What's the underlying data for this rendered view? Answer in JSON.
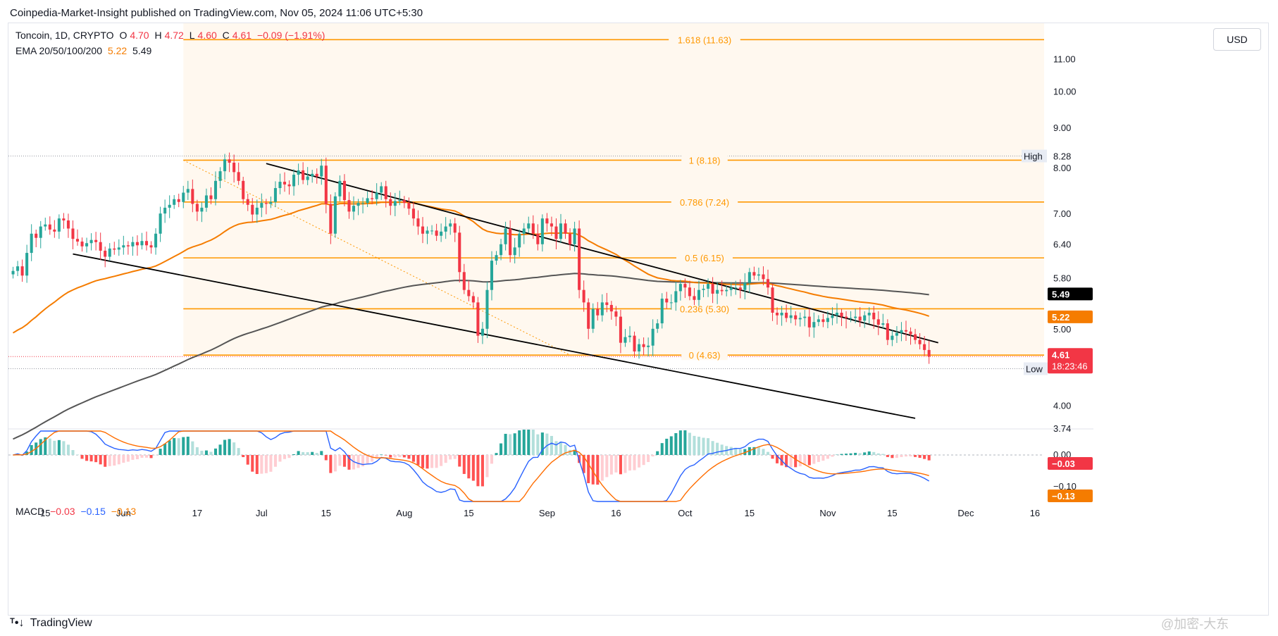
{
  "publisher_line": "Coinpedia-Market-Insight published on TradingView.com, Nov 05, 2024 11:06 UTC+5:30",
  "legend": {
    "symbol": "Toncoin, 1D, CRYPTO",
    "o_label": "O",
    "o": "4.70",
    "h_label": "H",
    "h": "4.72",
    "l_label": "L",
    "l": "4.60",
    "c_label": "C",
    "c": "4.61",
    "change": "−0.09 (−1.91%)",
    "ema_label": "EMA 20/50/100/200",
    "ema_50": "5.22",
    "ema_200": "5.49",
    "macd_label": "MACD",
    "macd_hist": "−0.03",
    "macd_line": "−0.15",
    "macd_signal": "−0.13"
  },
  "currency_button": "USD",
  "high_marker": {
    "label": "High",
    "value": "8.28"
  },
  "low_marker": {
    "label": "Low",
    "value": "4.45"
  },
  "price_tags": {
    "ema200": "5.49",
    "ema50": "5.22",
    "last_price": "4.61",
    "countdown": "18:23:46"
  },
  "macd_tags": {
    "hist": "−0.03",
    "signal": "−0.13"
  },
  "fib_levels": [
    {
      "label": "1.618 (11.63)",
      "value": 11.63
    },
    {
      "label": "1 (8.18)",
      "value": 8.18
    },
    {
      "label": "0.786 (7.24)",
      "value": 7.24
    },
    {
      "label": "0.5 (6.15)",
      "value": 6.15
    },
    {
      "label": "0.236 (5.30)",
      "value": 5.3
    },
    {
      "label": "0 (4.63)",
      "value": 4.63
    }
  ],
  "price_axis": [
    "11.00",
    "10.00",
    "9.00",
    "8.00",
    "7.00",
    "6.40",
    "5.80",
    "5.00",
    "4.00",
    "3.74"
  ],
  "macd_axis": [
    "0.00",
    "−0.10"
  ],
  "time_axis": [
    "15",
    "Jun",
    "17",
    "Jul",
    "15",
    "Aug",
    "15",
    "Sep",
    "16",
    "Oct",
    "15",
    "Nov",
    "15",
    "Dec",
    "16"
  ],
  "footer_brand": "TradingView",
  "watermark": "@加密-大东",
  "colors": {
    "up": "#26a69a",
    "down": "#f23645",
    "fib": "#ff9800",
    "ema50": "#f57c00",
    "ema200": "#555555",
    "macd_line": "#2962ff",
    "signal": "#ff6d00",
    "hist_up_strong": "#26a69a",
    "hist_up_weak": "#b2dfdb",
    "hist_down_strong": "#ff5252",
    "hist_down_weak": "#ffcdd2"
  },
  "chart_data": {
    "type": "candlestick",
    "title": "Toncoin, 1D, CRYPTO",
    "y_scale": "log",
    "ylim": [
      3.74,
      12.2
    ],
    "x_range": [
      "2024-05-07",
      "2024-12-18"
    ],
    "start_date": "2024-05-08",
    "closes": [
      5.92,
      6.0,
      5.84,
      6.24,
      6.6,
      6.52,
      6.74,
      6.78,
      6.68,
      6.64,
      6.9,
      6.86,
      6.7,
      6.5,
      6.45,
      6.36,
      6.42,
      6.48,
      6.44,
      6.28,
      6.17,
      6.32,
      6.3,
      6.34,
      6.38,
      6.36,
      6.44,
      6.38,
      6.46,
      6.38,
      6.34,
      6.6,
      7.0,
      7.12,
      7.18,
      7.3,
      7.24,
      7.44,
      7.52,
      7.2,
      7.04,
      7.12,
      7.38,
      7.3,
      7.7,
      7.92,
      8.2,
      8.12,
      7.9,
      7.7,
      7.3,
      7.18,
      6.98,
      7.12,
      7.22,
      7.2,
      7.24,
      7.54,
      7.68,
      7.62,
      7.58,
      7.84,
      7.94,
      7.72,
      7.8,
      7.86,
      7.8,
      8.05,
      7.2,
      6.6,
      7.36,
      7.7,
      7.28,
      7.04,
      7.16,
      7.22,
      7.22,
      7.32,
      7.3,
      7.44,
      7.58,
      7.3,
      7.16,
      7.26,
      7.28,
      7.22,
      7.1,
      6.9,
      6.74,
      6.6,
      6.66,
      6.66,
      6.56,
      6.64,
      6.74,
      6.8,
      6.62,
      5.9,
      5.6,
      5.5,
      5.4,
      4.9,
      5.0,
      5.6,
      6.1,
      6.2,
      6.4,
      6.7,
      6.2,
      6.34,
      6.6,
      6.7,
      6.8,
      6.6,
      6.4,
      6.9,
      6.8,
      6.74,
      6.5,
      6.8,
      6.6,
      6.4,
      6.7,
      5.6,
      5.4,
      5.0,
      5.3,
      5.2,
      5.4,
      5.36,
      5.26,
      5.18,
      4.8,
      4.88,
      4.9,
      4.68,
      4.78,
      4.74,
      4.76,
      5.0,
      5.08,
      5.46,
      5.4,
      5.4,
      5.58,
      5.7,
      5.64,
      5.5,
      5.44,
      5.6,
      5.62,
      5.7,
      5.54,
      5.6,
      5.58,
      5.6,
      5.64,
      5.64,
      5.6,
      5.72,
      5.9,
      5.84,
      5.86,
      5.78,
      5.64,
      5.24,
      5.2,
      5.24,
      5.16,
      5.2,
      5.14,
      5.16,
      5.18,
      5.02,
      5.1,
      5.14,
      5.1,
      5.16,
      5.2,
      5.24,
      5.18,
      5.16,
      5.16,
      5.18,
      5.12,
      5.2,
      5.24,
      5.14,
      5.06,
      5.08,
      4.84,
      4.9,
      4.94,
      4.98,
      4.96,
      4.92,
      4.84,
      4.78,
      4.7,
      4.61
    ],
    "ema50_last": 5.22,
    "ema200_last": 5.49,
    "high": 8.28,
    "low": 4.45,
    "trend_channel": [
      {
        "from": [
          "2024-07-02",
          8.1
        ],
        "to": [
          "2024-11-25",
          4.8
        ]
      },
      {
        "from": [
          "2024-05-21",
          6.22
        ],
        "to": [
          "2024-11-20",
          3.85
        ]
      }
    ],
    "macd": {
      "hist": -0.03,
      "macd": -0.15,
      "signal": -0.13
    }
  }
}
